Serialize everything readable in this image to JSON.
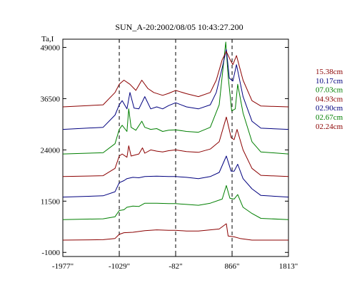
{
  "chart_data": {
    "type": "line",
    "title": "SUN_A-20:2002/08/05 10:43:27.200",
    "ylabel": "Ta,I",
    "xlabel": "",
    "x_ticks": [
      -1977,
      -1029,
      -82,
      866,
      1813
    ],
    "x_tick_labels": [
      "-1977\"",
      "-1029\"",
      "-82\"",
      "866\"",
      "1813\""
    ],
    "y_ticks": [
      -1000,
      11500,
      24000,
      36500,
      49000
    ],
    "y_tick_labels": [
      "-1000",
      "11500",
      "24000",
      "36500",
      "49000"
    ],
    "xlim": [
      -1977,
      1813
    ],
    "ylim": [
      -2000,
      51000
    ],
    "dashed_vlines": [
      -1029,
      -82,
      866
    ],
    "grid": false,
    "legend_position": "right",
    "series": [
      {
        "name": "02.24cm",
        "color": "#8b0000",
        "baseline": 2000,
        "points": [
          [
            -1977,
            2000
          ],
          [
            -1300,
            2100
          ],
          [
            -1100,
            2400
          ],
          [
            -1029,
            3400
          ],
          [
            -950,
            3800
          ],
          [
            -800,
            3900
          ],
          [
            -600,
            4300
          ],
          [
            -400,
            4500
          ],
          [
            -200,
            4400
          ],
          [
            -82,
            4400
          ],
          [
            100,
            4200
          ],
          [
            300,
            4200
          ],
          [
            500,
            4500
          ],
          [
            650,
            4700
          ],
          [
            770,
            6000
          ],
          [
            800,
            3000
          ],
          [
            900,
            2800
          ],
          [
            1000,
            2400
          ],
          [
            1200,
            2000
          ],
          [
            1813,
            2000
          ]
        ]
      },
      {
        "name": "02.67cm",
        "color": "#007f00",
        "baseline": 7000,
        "points": [
          [
            -1977,
            7000
          ],
          [
            -1300,
            7200
          ],
          [
            -1100,
            7700
          ],
          [
            -1029,
            9200
          ],
          [
            -950,
            9400
          ],
          [
            -900,
            10000
          ],
          [
            -800,
            10300
          ],
          [
            -700,
            10200
          ],
          [
            -600,
            11000
          ],
          [
            -400,
            11000
          ],
          [
            -200,
            10900
          ],
          [
            -82,
            10900
          ],
          [
            100,
            10700
          ],
          [
            300,
            10500
          ],
          [
            500,
            11000
          ],
          [
            700,
            12000
          ],
          [
            770,
            15300
          ],
          [
            830,
            12200
          ],
          [
            900,
            12000
          ],
          [
            960,
            13100
          ],
          [
            1050,
            10000
          ],
          [
            1200,
            8500
          ],
          [
            1350,
            7300
          ],
          [
            1813,
            7000
          ]
        ]
      },
      {
        "name": "02.90cm",
        "color": "#00007f",
        "baseline": 12500,
        "points": [
          [
            -1977,
            12500
          ],
          [
            -1300,
            12800
          ],
          [
            -1100,
            13800
          ],
          [
            -1029,
            16000
          ],
          [
            -950,
            16500
          ],
          [
            -900,
            17000
          ],
          [
            -800,
            17300
          ],
          [
            -700,
            17200
          ],
          [
            -600,
            17500
          ],
          [
            -400,
            17600
          ],
          [
            -200,
            17500
          ],
          [
            -82,
            17500
          ],
          [
            100,
            17300
          ],
          [
            300,
            17000
          ],
          [
            500,
            17500
          ],
          [
            650,
            18500
          ],
          [
            770,
            22500
          ],
          [
            850,
            18800
          ],
          [
            900,
            18800
          ],
          [
            960,
            20500
          ],
          [
            1050,
            17000
          ],
          [
            1200,
            14500
          ],
          [
            1350,
            12900
          ],
          [
            1813,
            12500
          ]
        ]
      },
      {
        "name": "04.93cm",
        "color": "#8b0000",
        "baseline": 17500,
        "points": [
          [
            -1977,
            17500
          ],
          [
            -1300,
            17700
          ],
          [
            -1100,
            19500
          ],
          [
            -1029,
            22500
          ],
          [
            -980,
            23000
          ],
          [
            -900,
            22200
          ],
          [
            -870,
            25000
          ],
          [
            -830,
            22500
          ],
          [
            -700,
            23000
          ],
          [
            -640,
            24500
          ],
          [
            -600,
            23200
          ],
          [
            -500,
            24000
          ],
          [
            -400,
            23700
          ],
          [
            -300,
            23500
          ],
          [
            -200,
            23800
          ],
          [
            -82,
            24000
          ],
          [
            100,
            23600
          ],
          [
            300,
            23400
          ],
          [
            500,
            24200
          ],
          [
            650,
            26000
          ],
          [
            770,
            32000
          ],
          [
            850,
            27000
          ],
          [
            900,
            26500
          ],
          [
            950,
            29000
          ],
          [
            1050,
            24000
          ],
          [
            1200,
            19500
          ],
          [
            1350,
            17800
          ],
          [
            1813,
            17500
          ]
        ]
      },
      {
        "name": "07.03cm",
        "color": "#007f00",
        "baseline": 23000,
        "points": [
          [
            -1977,
            23000
          ],
          [
            -1300,
            23300
          ],
          [
            -1100,
            25500
          ],
          [
            -1029,
            29000
          ],
          [
            -980,
            30000
          ],
          [
            -900,
            28500
          ],
          [
            -870,
            34000
          ],
          [
            -830,
            29500
          ],
          [
            -750,
            28800
          ],
          [
            -650,
            31000
          ],
          [
            -600,
            29500
          ],
          [
            -500,
            29000
          ],
          [
            -400,
            29200
          ],
          [
            -300,
            28500
          ],
          [
            -200,
            28800
          ],
          [
            -82,
            28900
          ],
          [
            100,
            28500
          ],
          [
            300,
            28300
          ],
          [
            500,
            29500
          ],
          [
            650,
            35000
          ],
          [
            700,
            42000
          ],
          [
            760,
            50300
          ],
          [
            800,
            42000
          ],
          [
            860,
            33500
          ],
          [
            920,
            34000
          ],
          [
            960,
            40000
          ],
          [
            1050,
            33000
          ],
          [
            1200,
            26000
          ],
          [
            1350,
            23500
          ],
          [
            1813,
            23000
          ]
        ]
      },
      {
        "name": "10.17cm",
        "color": "#00007f",
        "baseline": 29000,
        "points": [
          [
            -1977,
            29000
          ],
          [
            -1300,
            29500
          ],
          [
            -1100,
            32500
          ],
          [
            -1029,
            35000
          ],
          [
            -980,
            36000
          ],
          [
            -900,
            34000
          ],
          [
            -850,
            38000
          ],
          [
            -780,
            34200
          ],
          [
            -700,
            34000
          ],
          [
            -600,
            37000
          ],
          [
            -500,
            34000
          ],
          [
            -400,
            34500
          ],
          [
            -300,
            34000
          ],
          [
            -200,
            34800
          ],
          [
            -82,
            35500
          ],
          [
            100,
            34500
          ],
          [
            300,
            34000
          ],
          [
            500,
            35000
          ],
          [
            600,
            38000
          ],
          [
            700,
            44000
          ],
          [
            770,
            48500
          ],
          [
            820,
            41500
          ],
          [
            880,
            40800
          ],
          [
            940,
            44800
          ],
          [
            1050,
            37000
          ],
          [
            1200,
            31000
          ],
          [
            1350,
            29300
          ],
          [
            1813,
            29000
          ]
        ]
      },
      {
        "name": "15.38cm",
        "color": "#8b0000",
        "baseline": 34500,
        "points": [
          [
            -1977,
            34500
          ],
          [
            -1300,
            35000
          ],
          [
            -1100,
            38000
          ],
          [
            -1029,
            40000
          ],
          [
            -950,
            41000
          ],
          [
            -850,
            40000
          ],
          [
            -750,
            38500
          ],
          [
            -650,
            41000
          ],
          [
            -550,
            39000
          ],
          [
            -450,
            38000
          ],
          [
            -300,
            37300
          ],
          [
            -200,
            37800
          ],
          [
            -82,
            38500
          ],
          [
            100,
            37700
          ],
          [
            300,
            37000
          ],
          [
            500,
            38000
          ],
          [
            600,
            41000
          ],
          [
            700,
            46000
          ],
          [
            770,
            48000
          ],
          [
            840,
            45800
          ],
          [
            880,
            44800
          ],
          [
            940,
            47000
          ],
          [
            1050,
            41000
          ],
          [
            1200,
            36000
          ],
          [
            1350,
            34700
          ],
          [
            1813,
            34500
          ]
        ]
      }
    ]
  }
}
